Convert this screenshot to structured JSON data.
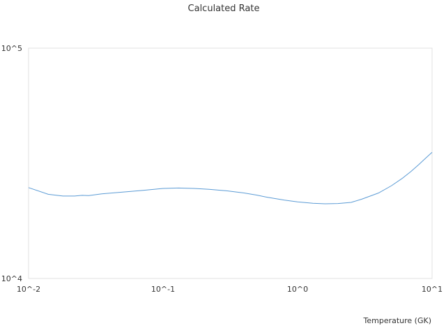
{
  "chart_data": {
    "type": "line",
    "title": "Calculated Rate",
    "xlabel": "Temperature (GK)",
    "ylabel": "",
    "x_scale": "log",
    "y_scale": "log",
    "xlim": [
      0.01,
      10
    ],
    "ylim": [
      10000,
      100000
    ],
    "x_tick_labels": [
      "10^-2",
      "10^-1",
      "10^0",
      "10^1"
    ],
    "y_tick_labels": [
      "10^4",
      "10^5"
    ],
    "grid": false,
    "line_color": "#5b9bd5",
    "series": [
      {
        "name": "",
        "x": [
          0.01,
          0.014,
          0.018,
          0.022,
          0.025,
          0.028,
          0.035,
          0.05,
          0.07,
          0.1,
          0.13,
          0.17,
          0.22,
          0.3,
          0.4,
          0.5,
          0.6,
          0.8,
          1.0,
          1.3,
          1.6,
          2.0,
          2.5,
          3.0,
          4.0,
          5.0,
          6.0,
          7.0,
          8.0,
          9.0,
          10.0
        ],
        "y": [
          24800,
          23200,
          22800,
          22800,
          22950,
          22900,
          23300,
          23700,
          24100,
          24600,
          24700,
          24600,
          24400,
          24000,
          23500,
          23000,
          22500,
          21900,
          21500,
          21200,
          21100,
          21150,
          21400,
          22100,
          23500,
          25300,
          27200,
          29200,
          31300,
          33400,
          35300
        ]
      }
    ]
  }
}
